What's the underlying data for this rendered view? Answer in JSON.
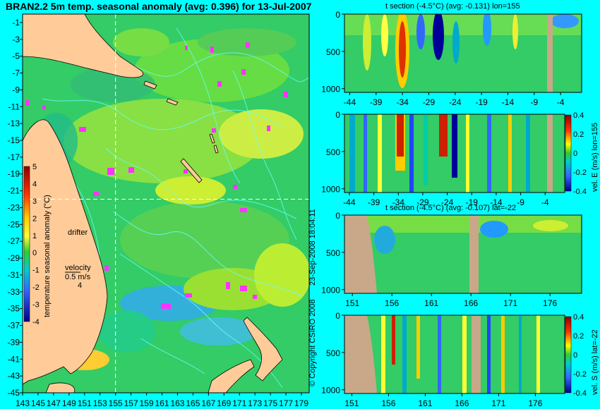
{
  "chart_data": [
    {
      "type": "heatmap",
      "title": "BRAN2.2 5m temp. seasonal anomaly (avg: 0.396) for 13-Jul-2007",
      "x_ticks": [
        "143",
        "145",
        "147",
        "149",
        "151",
        "153",
        "155",
        "157",
        "159",
        "161",
        "163",
        "165",
        "167",
        "169",
        "171",
        "173",
        "175",
        "177",
        "179"
      ],
      "y_ticks": [
        "-1",
        "-3",
        "-5",
        "-7",
        "-9",
        "-11",
        "-13",
        "-15",
        "-17",
        "-19",
        "-21",
        "-23",
        "-25",
        "-27",
        "-29",
        "-31",
        "-33",
        "-35",
        "-37",
        "-39",
        "-41",
        "-43",
        "-45"
      ],
      "xlim": [
        143,
        180
      ],
      "ylim": [
        -45,
        0
      ],
      "section_lines": {
        "lon": 155,
        "lat": -22
      },
      "colorbar": {
        "label": "temperature seasonal anomaly (°C)",
        "ticks": [
          "5",
          "4",
          "3",
          "2",
          "1",
          "0",
          "-1",
          "-2",
          "-3",
          "-4"
        ],
        "range": [
          -4,
          5
        ]
      },
      "annotations": {
        "drifter": "drifter",
        "velocity": "velocity",
        "velocity_value": "0.5 m/s",
        "velocity_line2": "4"
      }
    },
    {
      "type": "heatmap",
      "title": "t section (-4.5°C) (avg: -0.131) lon=155",
      "x_ticks": [
        "-44",
        "-39",
        "-34",
        "-29",
        "-24",
        "-19",
        "-14",
        "-9",
        "-4"
      ],
      "xlim": [
        -45,
        0
      ],
      "y_ticks": [
        "0",
        "500",
        "1000"
      ],
      "ylim": [
        1050,
        0
      ]
    },
    {
      "type": "heatmap",
      "title": "",
      "x_ticks": [
        "-44",
        "-39",
        "-34",
        "-29",
        "-24",
        "-19",
        "-14",
        "-9",
        "-4"
      ],
      "xlim": [
        -45,
        0
      ],
      "y_ticks": [
        "0",
        "500",
        "1000"
      ],
      "ylim": [
        1050,
        0
      ],
      "colorbar": {
        "label": "vel. E (m/s) lon=155",
        "ticks": [
          "0.4",
          "0.2",
          "0",
          "-0.2",
          "-0.4"
        ],
        "range": [
          -0.4,
          0.4
        ]
      }
    },
    {
      "type": "heatmap",
      "title": "t section (-4.5°C) (avg: -0.107) lat=-22",
      "x_ticks": [
        "151",
        "156",
        "161",
        "166",
        "171",
        "176"
      ],
      "xlim": [
        150,
        180
      ],
      "y_ticks": [
        "0",
        "500",
        "1000"
      ],
      "ylim": [
        1050,
        0
      ]
    },
    {
      "type": "heatmap",
      "title": "",
      "x_ticks": [
        "151",
        "156",
        "161",
        "166",
        "171",
        "176"
      ],
      "xlim": [
        150,
        180
      ],
      "y_ticks": [
        "0",
        "500",
        "1000"
      ],
      "ylim": [
        1050,
        0
      ],
      "colorbar": {
        "label": "vel. S (m/s) lat=-22",
        "ticks": [
          "0.4",
          "0.2",
          "0",
          "-0.2",
          "-0.4"
        ],
        "range": [
          -0.4,
          0.4
        ]
      }
    }
  ],
  "credit": "© Copyright CSIRO 2008",
  "timestamp": "23-Sep-2008 18:04:11",
  "colors": {
    "background": "#00ffff",
    "land": "#ffcc99",
    "section_land": "#c8a888",
    "ocean_base": "#33cc66",
    "contour": "#66ffff",
    "drifter": "#ff33ff"
  }
}
